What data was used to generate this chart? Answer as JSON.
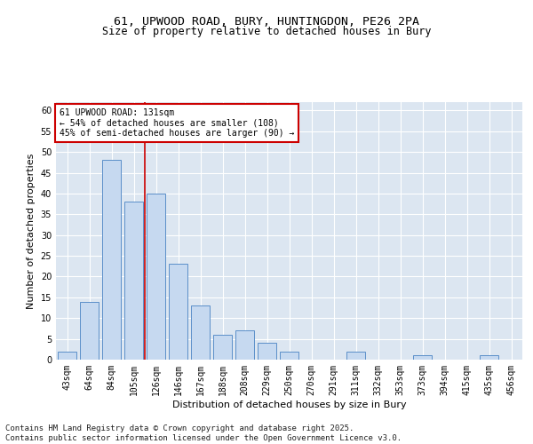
{
  "title_line1": "61, UPWOOD ROAD, BURY, HUNTINGDON, PE26 2PA",
  "title_line2": "Size of property relative to detached houses in Bury",
  "xlabel": "Distribution of detached houses by size in Bury",
  "ylabel": "Number of detached properties",
  "footer": "Contains HM Land Registry data © Crown copyright and database right 2025.\nContains public sector information licensed under the Open Government Licence v3.0.",
  "categories": [
    "43sqm",
    "64sqm",
    "84sqm",
    "105sqm",
    "126sqm",
    "146sqm",
    "167sqm",
    "188sqm",
    "208sqm",
    "229sqm",
    "250sqm",
    "270sqm",
    "291sqm",
    "311sqm",
    "332sqm",
    "353sqm",
    "373sqm",
    "394sqm",
    "415sqm",
    "435sqm",
    "456sqm"
  ],
  "values": [
    2,
    14,
    48,
    38,
    40,
    23,
    13,
    6,
    7,
    4,
    2,
    0,
    0,
    2,
    0,
    0,
    1,
    0,
    0,
    1,
    0
  ],
  "bar_color": "#c6d9f0",
  "bar_edge_color": "#5b8fc9",
  "background_color": "#dce6f1",
  "grid_color": "#ffffff",
  "annotation_box_text": "61 UPWOOD ROAD: 131sqm\n← 54% of detached houses are smaller (108)\n45% of semi-detached houses are larger (90) →",
  "annotation_box_color": "#ffffff",
  "annotation_box_edge_color": "#cc0000",
  "vline_color": "#cc0000",
  "vline_x": 3.5,
  "ylim": [
    0,
    62
  ],
  "yticks": [
    0,
    5,
    10,
    15,
    20,
    25,
    30,
    35,
    40,
    45,
    50,
    55,
    60
  ],
  "annotation_fontsize": 7.0,
  "title_fontsize1": 9.5,
  "title_fontsize2": 8.5,
  "ylabel_fontsize": 8,
  "xlabel_fontsize": 8,
  "tick_fontsize": 7,
  "footer_fontsize": 6.5
}
